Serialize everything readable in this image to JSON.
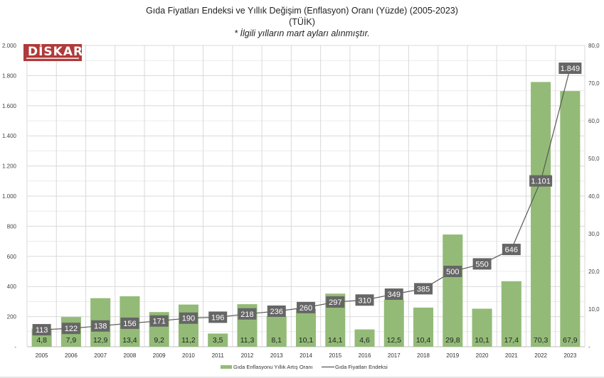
{
  "chart_data": {
    "type": "bar+line",
    "title": "Gıda Fiyatları Endeksi ve Yıllık Değişim (Enflasyon) Oranı (Yüzde) (2005-2023)",
    "subtitle": "(TÜİK)",
    "note": "* İlgili yılların mart ayları alınmıştır.",
    "logo_text": "DİSKAR",
    "categories": [
      "2005",
      "2006",
      "2007",
      "2008",
      "2009",
      "2010",
      "2011",
      "2012",
      "2013",
      "2014",
      "2015",
      "2016",
      "2017",
      "2018",
      "2019",
      "2020",
      "2021",
      "2022",
      "2023"
    ],
    "series": [
      {
        "name": "Gıda Enflasyonu Yıllık Artış Oranı",
        "type": "bar",
        "axis": "right",
        "color": "#93bb77",
        "values": [
          4.8,
          7.9,
          12.9,
          13.4,
          9.2,
          11.2,
          3.5,
          11.3,
          8.1,
          10.1,
          14.1,
          4.6,
          12.5,
          10.4,
          29.8,
          10.1,
          17.4,
          70.3,
          67.9
        ],
        "labels": [
          "4,8",
          "7,9",
          "12,9",
          "13,4",
          "9,2",
          "11,2",
          "3,5",
          "11,3",
          "8,1",
          "10,1",
          "14,1",
          "4,6",
          "12,5",
          "10,4",
          "29,8",
          "10,1",
          "17,4",
          "70,3",
          "67,9"
        ]
      },
      {
        "name": "Gıda Fiyatları Endeksi",
        "type": "line",
        "axis": "left",
        "color": "#595959",
        "values": [
          113,
          122,
          138,
          156,
          171,
          190,
          196,
          218,
          236,
          260,
          297,
          310,
          349,
          385,
          500,
          550,
          646,
          1101,
          1849
        ],
        "labels": [
          "113",
          "122",
          "138",
          "156",
          "171",
          "190",
          "196",
          "218",
          "236",
          "260",
          "297",
          "310",
          "349",
          "385",
          "500",
          "550",
          "646",
          "1.101",
          "1.849"
        ]
      }
    ],
    "left_axis": {
      "range": [
        0,
        2000
      ],
      "ticks": [
        "-",
        "200",
        "400",
        "600",
        "800",
        "1.000",
        "1.200",
        "1.400",
        "1.600",
        "1.800",
        "2.000"
      ]
    },
    "right_axis": {
      "range": [
        0,
        80
      ],
      "ticks": [
        "-",
        "10,0",
        "20,0",
        "30,0",
        "40,0",
        "50,0",
        "60,0",
        "70,0",
        "80,0"
      ]
    },
    "legend": "bottom"
  }
}
